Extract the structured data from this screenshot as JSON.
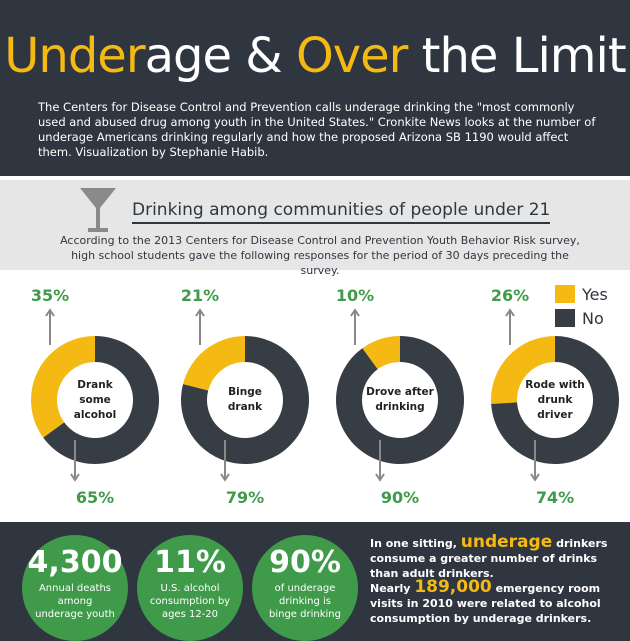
{
  "header": {
    "title_parts": [
      "Under",
      "age &",
      "Over",
      "the Limit"
    ],
    "intro": "The Centers for Disease Control and Prevention calls underage drinking the \"most commonly used and abused drug among youth in the United States.\" Cronkite News looks at the number of underage Americans drinking regularly and how the proposed Arizona SB 1190 would affect them. Visualization by Stephanie Habib."
  },
  "section": {
    "heading": "Drinking among communities of people under 21",
    "description": "According to the 2013 Centers for Disease Control and Prevention Youth Behavior Risk survey, high school students gave the following responses for the period of 30 days preceding the survey."
  },
  "legend": [
    {
      "name": "Yes",
      "color": "#f5b914"
    },
    {
      "name": "No",
      "color": "#363d45"
    }
  ],
  "chart_data": [
    {
      "type": "pie",
      "label": "Drank some alcohol",
      "values": [
        35,
        65
      ],
      "value_labels": [
        "35%",
        "65%"
      ]
    },
    {
      "type": "pie",
      "label": "Binge drank",
      "values": [
        21,
        79
      ],
      "value_labels": [
        "21%",
        "79%"
      ]
    },
    {
      "type": "pie",
      "label": "Drove after drinking",
      "values": [
        10,
        90
      ],
      "value_labels": [
        "10%",
        "90%"
      ]
    },
    {
      "type": "pie",
      "label": "Rode with drunk driver",
      "values": [
        26,
        74
      ],
      "value_labels": [
        "26%",
        "74%"
      ]
    }
  ],
  "stats": [
    {
      "number": "4,300",
      "caption": "Annual deaths among underage youth"
    },
    {
      "number": "11%",
      "caption": "U.S. alcohol consumption by ages 12-20"
    },
    {
      "number": "90%",
      "caption": "of underage drinking is binge drinking"
    }
  ],
  "facts": [
    [
      "In one sitting,",
      "underage",
      "drinkers consume a greater number of drinks than adult drinkers."
    ],
    [
      "Nearly",
      "189,000",
      "emergency room visits in 2010 were related to alcohol consumption by underage drinkers."
    ]
  ]
}
